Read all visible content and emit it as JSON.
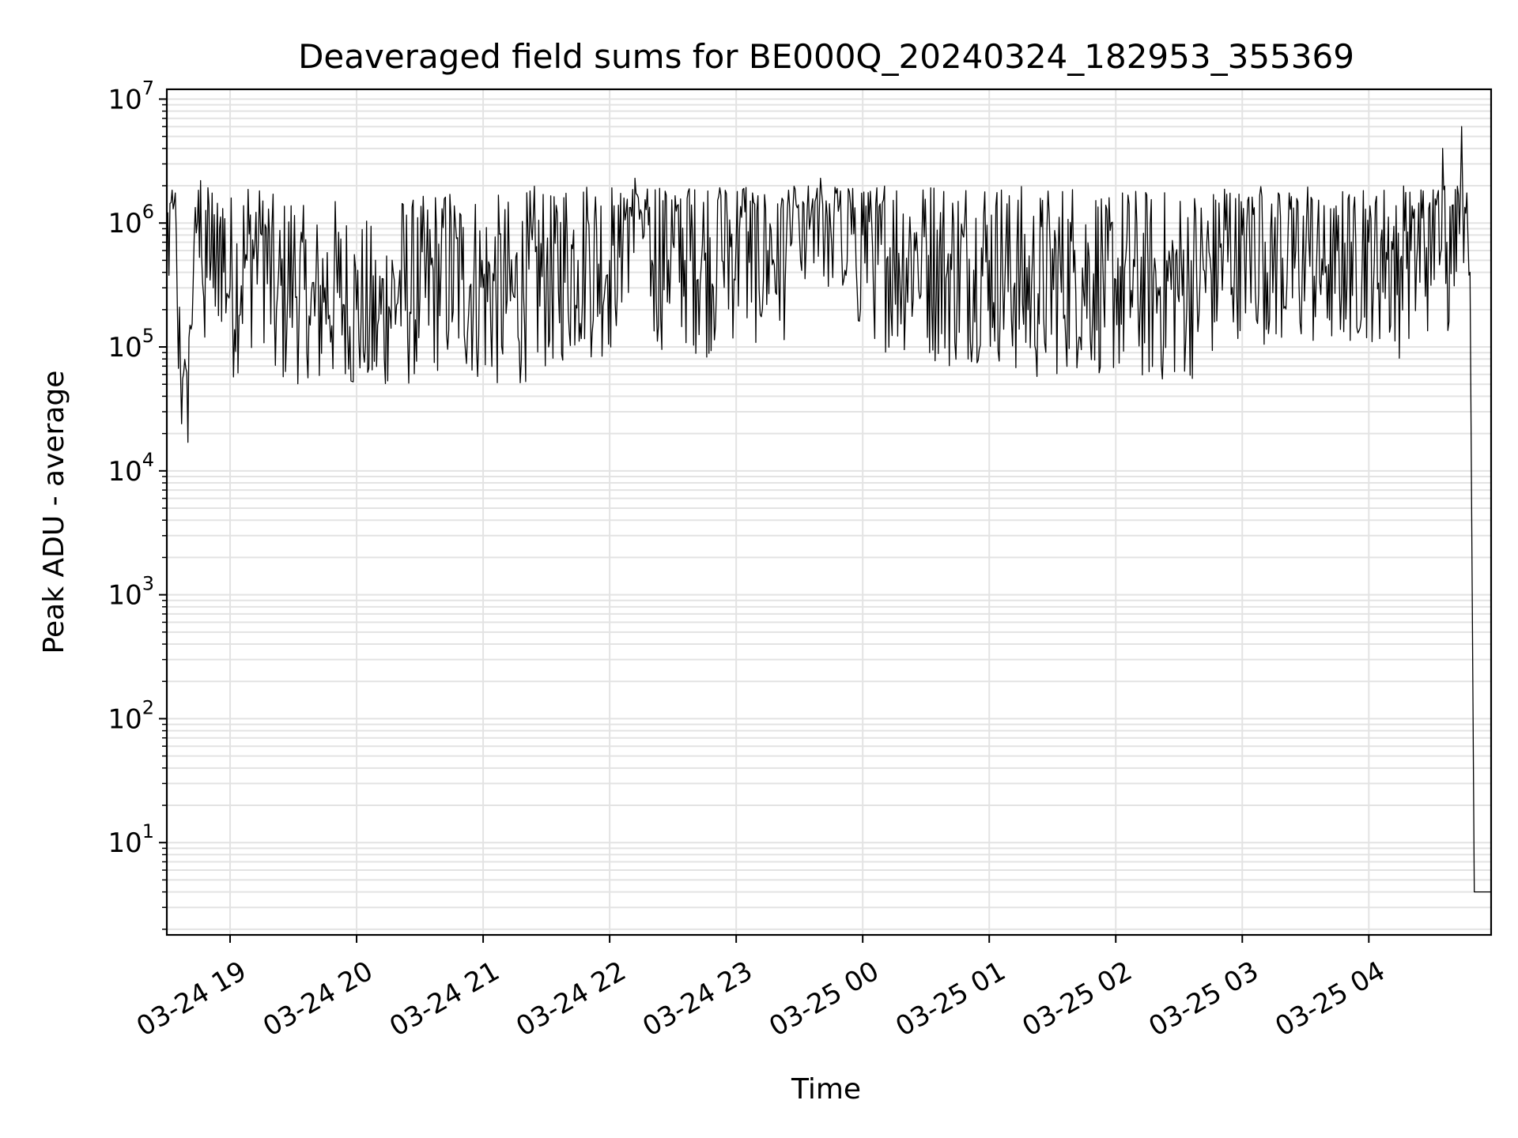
{
  "chart_data": {
    "type": "line",
    "title": "Deaveraged field sums for BE000Q_20240324_182953_355369",
    "xlabel": "Time",
    "ylabel": "Peak ADU - average",
    "y_scale": "log",
    "ylim": [
      1.8,
      12000000
    ],
    "xlim": [
      "2024-03-24 18:30",
      "2024-03-25 04:58"
    ],
    "grid": true,
    "line_color": "#000000",
    "grid_color": "#e3e3e3",
    "x_ticks": [
      {
        "value": "2024-03-24 19:00",
        "label": "03-24 19"
      },
      {
        "value": "2024-03-24 20:00",
        "label": "03-24 20"
      },
      {
        "value": "2024-03-24 21:00",
        "label": "03-24 21"
      },
      {
        "value": "2024-03-24 22:00",
        "label": "03-24 22"
      },
      {
        "value": "2024-03-24 23:00",
        "label": "03-24 23"
      },
      {
        "value": "2024-03-25 00:00",
        "label": "03-25 00"
      },
      {
        "value": "2024-03-25 01:00",
        "label": "03-25 01"
      },
      {
        "value": "2024-03-25 02:00",
        "label": "03-25 02"
      },
      {
        "value": "2024-03-25 03:00",
        "label": "03-25 03"
      },
      {
        "value": "2024-03-25 04:00",
        "label": "03-25 04"
      }
    ],
    "y_ticks": [
      {
        "value": 10,
        "base": "10",
        "exp": "1"
      },
      {
        "value": 100,
        "base": "10",
        "exp": "2"
      },
      {
        "value": 1000,
        "base": "10",
        "exp": "3"
      },
      {
        "value": 10000,
        "base": "10",
        "exp": "4"
      },
      {
        "value": 100000,
        "base": "10",
        "exp": "5"
      },
      {
        "value": 1000000,
        "base": "10",
        "exp": "6"
      },
      {
        "value": 10000000,
        "base": "10",
        "exp": "7"
      }
    ],
    "series": [
      {
        "x": [
          "2024-03-24 18:30",
          "2024-03-24 18:33",
          "2024-03-24 18:35",
          "2024-03-24 18:37",
          "2024-03-24 18:40",
          "2024-03-24 18:41",
          "2024-03-24 18:43",
          "2024-03-24 18:46",
          "2024-03-24 18:48",
          "2024-03-24 18:50",
          "2024-03-24 18:52",
          "2024-03-24 18:55",
          "2024-03-24 19:00",
          "2024-03-24 19:08",
          "2024-03-24 19:15",
          "2024-03-24 19:22",
          "2024-03-24 19:30",
          "2024-03-24 19:38",
          "2024-03-24 19:45",
          "2024-03-24 19:52",
          "2024-03-24 20:00",
          "2024-03-24 20:10",
          "2024-03-24 20:20",
          "2024-03-24 20:30",
          "2024-03-24 20:40",
          "2024-03-24 20:50",
          "2024-03-24 21:00",
          "2024-03-24 21:15",
          "2024-03-24 21:30",
          "2024-03-24 21:45",
          "2024-03-24 22:00",
          "2024-03-24 22:12",
          "2024-03-24 22:20",
          "2024-03-24 22:30",
          "2024-03-24 22:45",
          "2024-03-24 23:00",
          "2024-03-24 23:15",
          "2024-03-24 23:30",
          "2024-03-24 23:40",
          "2024-03-24 23:50",
          "2024-03-25 00:00",
          "2024-03-25 00:15",
          "2024-03-25 00:25",
          "2024-03-25 00:40",
          "2024-03-25 01:00",
          "2024-03-25 01:20",
          "2024-03-25 01:40",
          "2024-03-25 02:00",
          "2024-03-25 02:20",
          "2024-03-25 02:40",
          "2024-03-25 03:00",
          "2024-03-25 03:15",
          "2024-03-25 03:30",
          "2024-03-25 03:45",
          "2024-03-25 04:00",
          "2024-03-25 04:15",
          "2024-03-25 04:20",
          "2024-03-25 04:30",
          "2024-03-25 04:35",
          "2024-03-25 04:37",
          "2024-03-25 04:40",
          "2024-03-25 04:44",
          "2024-03-25 04:46",
          "2024-03-25 04:48",
          "2024-03-25 04:50",
          "2024-03-25 04:52",
          "2024-03-25 04:55",
          "2024-03-25 04:58"
        ],
        "y": [
          600000,
          1300000,
          210000,
          24000,
          17000,
          150000,
          800000,
          2200000,
          120000,
          1400000,
          300000,
          900000,
          300000,
          500000,
          800000,
          200000,
          400000,
          150000,
          300000,
          250000,
          200000,
          150000,
          300000,
          250000,
          400000,
          350000,
          300000,
          250000,
          400000,
          500000,
          500000,
          2300000,
          500000,
          700000,
          500000,
          700000,
          600000,
          800000,
          2300000,
          600000,
          800000,
          500000,
          600000,
          400000,
          500000,
          300000,
          400000,
          350000,
          300000,
          350000,
          800000,
          600000,
          500000,
          600000,
          700000,
          500000,
          600000,
          800000,
          4000000,
          700000,
          1400000,
          6000000,
          1200000,
          400000,
          4,
          4,
          4,
          4
        ]
      }
    ]
  }
}
